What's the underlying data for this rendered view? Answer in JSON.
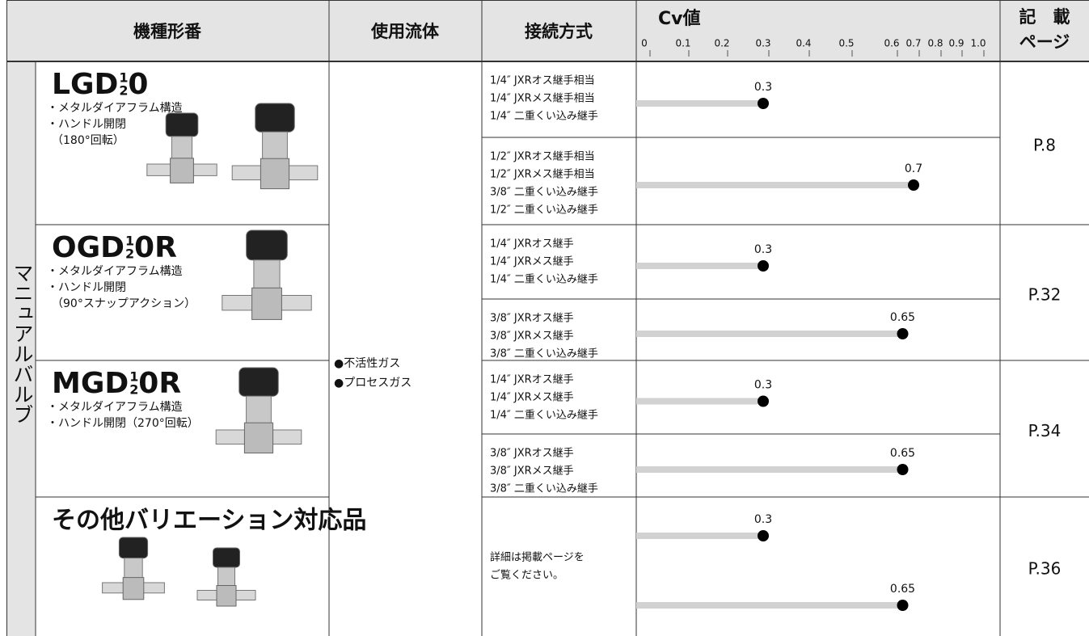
{
  "header": {
    "model": "機種形番",
    "fluid": "使用流体",
    "connection": "接続方式",
    "cv": "Cv値",
    "page": [
      "記　載",
      "ページ"
    ]
  },
  "category": "マニュアルバルブ",
  "fluids": [
    "●不活性ガス",
    "●プロセスガス"
  ],
  "cv_axis": {
    "ticks": [
      0,
      0.1,
      0.2,
      0.3,
      0.4,
      0.5,
      0.6,
      0.7,
      0.8,
      0.9,
      {
        "value": 1,
        "label": "1.0"
      }
    ]
  },
  "products": [
    {
      "name": {
        "prefix": "LGD",
        "upper": "1",
        "lower": "2",
        "suffix": "0"
      },
      "features": [
        "・メタルダイアフラム構造",
        "・ハンドル開閉",
        "（180°回転）"
      ],
      "groups": [
        {
          "connections": [
            "1/4″ JXRオス継手相当",
            "1/4″ JXRメス継手相当",
            "1/4″ 二重くい込み継手"
          ],
          "cv": [
            0.3
          ]
        },
        {
          "connections": [
            "1/2″ JXRオス継手相当",
            "1/2″ JXRメス継手相当",
            "3/8″ 二重くい込み継手",
            "1/2″ 二重くい込み継手"
          ],
          "cv": [
            0.7
          ]
        }
      ],
      "page": "P.8"
    },
    {
      "name": {
        "prefix": "OGD",
        "upper": "1",
        "lower": "2",
        "suffix": "0R"
      },
      "features": [
        "・メタルダイアフラム構造",
        "・ハンドル開閉",
        "（90°スナップアクション）"
      ],
      "groups": [
        {
          "connections": [
            "1/4″ JXRオス継手",
            "1/4″ JXRメス継手",
            "1/4″ 二重くい込み継手"
          ],
          "cv": [
            0.3
          ]
        },
        {
          "connections": [
            "3/8″ JXRオス継手",
            "3/8″ JXRメス継手",
            "3/8″ 二重くい込み継手"
          ],
          "cv": [
            0.65
          ]
        }
      ],
      "page": "P.32"
    },
    {
      "name": {
        "prefix": "MGD",
        "upper": "1",
        "lower": "2",
        "suffix": "0R"
      },
      "features": [
        "・メタルダイアフラム構造",
        "・ハンドル開閉（270°回転）"
      ],
      "groups": [
        {
          "connections": [
            "1/4″ JXRオス継手",
            "1/4″ JXRメス継手",
            "1/4″ 二重くい込み継手"
          ],
          "cv": [
            0.3
          ]
        },
        {
          "connections": [
            "3/8″ JXRオス継手",
            "3/8″ JXRメス継手",
            "3/8″ 二重くい込み継手"
          ],
          "cv": [
            0.65
          ]
        }
      ],
      "page": "P.34"
    },
    {
      "name": {
        "prefix": "その他バリエーション対応品"
      },
      "groups": [
        {
          "connections": [
            "詳細は掲載ページを",
            "ご覧ください。"
          ],
          "cv": [
            0.3,
            0.65
          ]
        }
      ],
      "page": "P.36"
    }
  ]
}
